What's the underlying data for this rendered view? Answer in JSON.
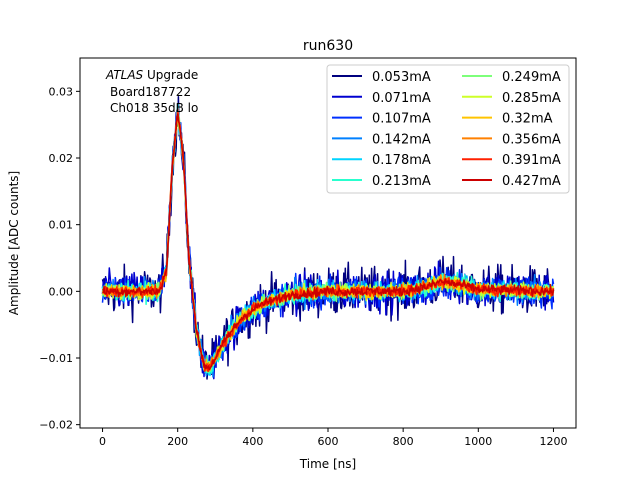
{
  "chart_data": {
    "type": "line",
    "title": "run630",
    "xlabel": "Time [ns]",
    "ylabel": "Amplitude [ADC counts]",
    "xlim": [
      -60,
      1260
    ],
    "ylim": [
      -0.0205,
      0.035
    ],
    "xticks": [
      0,
      200,
      400,
      600,
      800,
      1000,
      1200
    ],
    "xtick_labels": [
      "0",
      "200",
      "400",
      "600",
      "800",
      "1000",
      "1200"
    ],
    "yticks": [
      -0.02,
      -0.01,
      0.0,
      0.01,
      0.02,
      0.03
    ],
    "ytick_labels": [
      "−0.02",
      "−0.01",
      "0.00",
      "0.01",
      "0.02",
      "0.03"
    ],
    "grid": false,
    "legend_placement": "top-right",
    "legend_columns": 2,
    "annotation": {
      "italic": "ATLAS",
      "rest": " Upgrade",
      "line2": "Board187722",
      "line3": "Ch018 35dB lo"
    },
    "shape": {
      "time_ns": [
        0,
        150,
        170,
        185,
        200,
        215,
        230,
        250,
        270,
        285,
        300,
        330,
        370,
        420,
        500,
        600,
        800,
        870,
        900,
        950,
        1000,
        1200
      ],
      "amplitude": [
        0,
        0,
        0.003,
        0.018,
        0.027,
        0.02,
        0.005,
        -0.006,
        -0.011,
        -0.0115,
        -0.01,
        -0.007,
        -0.004,
        -0.002,
        -0.0005,
        0,
        0,
        0.0008,
        0.0015,
        0.001,
        0.0003,
        0
      ]
    },
    "series": [
      {
        "name": "0.053mA",
        "color": "#00007f",
        "noise": 0.003
      },
      {
        "name": "0.071mA",
        "color": "#0000d0",
        "noise": 0.0024
      },
      {
        "name": "0.107mA",
        "color": "#0030ff",
        "noise": 0.0018
      },
      {
        "name": "0.142mA",
        "color": "#0080ff",
        "noise": 0.0015
      },
      {
        "name": "0.178mA",
        "color": "#00d4ff",
        "noise": 0.0012
      },
      {
        "name": "0.213mA",
        "color": "#29ffce",
        "noise": 0.0011
      },
      {
        "name": "0.249mA",
        "color": "#7dff7a",
        "noise": 0.001
      },
      {
        "name": "0.285mA",
        "color": "#ceff29",
        "noise": 0.0009
      },
      {
        "name": "0.32mA",
        "color": "#ffc400",
        "noise": 0.0008
      },
      {
        "name": "0.356mA",
        "color": "#ff8000",
        "noise": 0.0007
      },
      {
        "name": "0.391mA",
        "color": "#ff2000",
        "noise": 0.0007
      },
      {
        "name": "0.427mA",
        "color": "#cc0000",
        "noise": 0.0006
      }
    ]
  }
}
